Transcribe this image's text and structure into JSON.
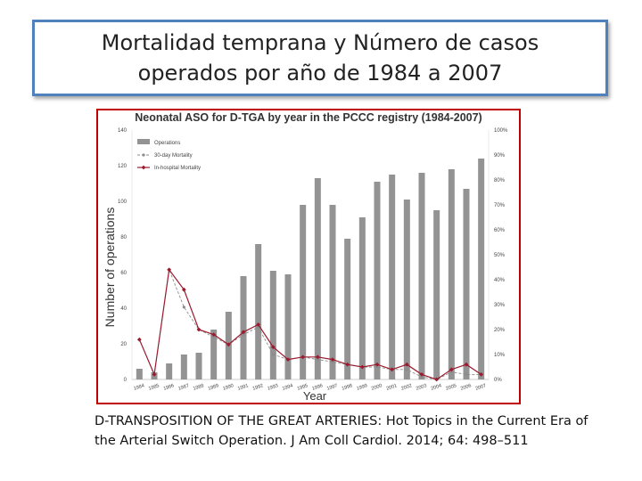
{
  "slide": {
    "title_line1": "Mortalidad temprana y Número de casos",
    "title_line2": "operados por año de 1984 a 2007",
    "caption_line1": "D-TRANSPOSITION OF THE GREAT ARTERIES: Hot Topics in the Current Era of",
    "caption_line2": "the Arterial Switch Operation. J Am Coll Cardiol. 2014; 64: 498–511"
  },
  "colors": {
    "bars": "#939393",
    "mortality_30day": "#8c8c8c",
    "in_hospital_mortality": "#9b1a2e",
    "frame": "#c00000",
    "title_border": "#4f81bd"
  },
  "chart_data": {
    "type": "bar",
    "title": "Neonatal ASO for D-TGA by year in the PCCC registry (1984-2007)",
    "xlabel": "Year",
    "ylabel": "Number of operations",
    "categories": [
      "1984",
      "1985",
      "1986",
      "1987",
      "1988",
      "1989",
      "1990",
      "1991",
      "1992",
      "1993",
      "1994",
      "1995",
      "1996",
      "1997",
      "1998",
      "1999",
      "2000",
      "2001",
      "2002",
      "2003",
      "2004",
      "2005",
      "2006",
      "2007"
    ],
    "ylim": [
      0,
      140
    ],
    "yticks": [
      0,
      20,
      40,
      60,
      80,
      100,
      120,
      140
    ],
    "y2lim": [
      0,
      100
    ],
    "y2ticks": [
      "0%",
      "10%",
      "20%",
      "30%",
      "40%",
      "50%",
      "60%",
      "70%",
      "80%",
      "90%",
      "100%"
    ],
    "legend_position": "top-left",
    "series": [
      {
        "name": "Operations",
        "kind": "bar",
        "axis": "left",
        "values": [
          6,
          4,
          9,
          14,
          15,
          28,
          38,
          58,
          76,
          61,
          59,
          98,
          113,
          98,
          79,
          91,
          111,
          115,
          101,
          116,
          95,
          118,
          107,
          124
        ]
      },
      {
        "name": "30-day Mortality",
        "kind": "line-dashed",
        "axis": "right",
        "values": [
          null,
          2,
          44,
          29,
          20,
          17,
          14,
          18,
          21,
          10,
          8,
          9,
          8,
          7,
          6,
          5,
          5,
          4,
          4,
          1,
          0,
          3,
          2,
          2
        ]
      },
      {
        "name": "In-hospital Mortality",
        "kind": "line",
        "axis": "right",
        "values": [
          16,
          2,
          44,
          36,
          20,
          18,
          14,
          19,
          22,
          13,
          8,
          9,
          9,
          8,
          6,
          5,
          6,
          4,
          6,
          2,
          0,
          4,
          6,
          2
        ]
      }
    ]
  }
}
